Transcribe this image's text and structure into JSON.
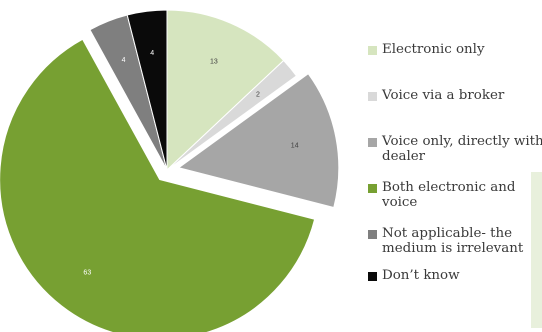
{
  "chart_data": {
    "type": "pie",
    "categories": [
      "Electronic only",
      "Voice via a broker",
      "Voice only, directly with dealer",
      "Both electronic and voice",
      "Not applicable- the medium is irrelevant",
      "Don’t know"
    ],
    "values": [
      13,
      2,
      14,
      63,
      4,
      4
    ],
    "colors": [
      "#d6e5bf",
      "#d9d9d9",
      "#a6a6a6",
      "#77a032",
      "#7f7f7f",
      "#0a0a0a"
    ],
    "label_colors": [
      "#404040",
      "#404040",
      "#404040",
      "#ffffff",
      "#ffffff",
      "#ffffff"
    ],
    "exploded": [
      false,
      false,
      true,
      true,
      false,
      false
    ],
    "start_angle": "top (12 o’clock)",
    "direction": "clockwise",
    "legend_position": "right"
  },
  "legend": {
    "labels": [
      "Electronic only",
      "Voice via a broker",
      "Voice only, directly with dealer",
      "Both electronic and voice",
      "Not applicable- the medium is irrelevant",
      "Don’t know"
    ]
  }
}
